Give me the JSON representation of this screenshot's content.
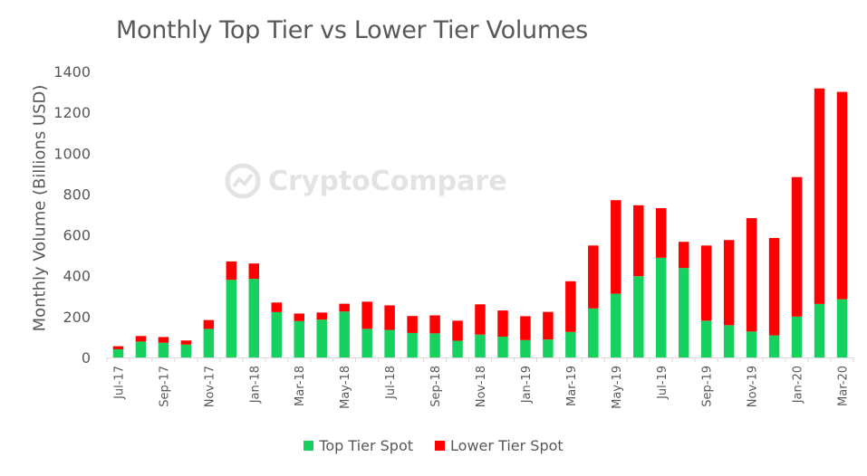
{
  "chart_data": {
    "type": "bar",
    "stacked": true,
    "title": "Monthly Top Tier vs Lower Tier Volumes",
    "ylabel": "Monthly Volume (Billions USD)",
    "xlabel": "",
    "ylim": [
      0,
      1400
    ],
    "yticks": [
      "0",
      "200",
      "400",
      "600",
      "800",
      "1000",
      "1200",
      "1400"
    ],
    "grid": false,
    "legend_position": "bottom",
    "categories": [
      "Jul-17",
      "Aug-17",
      "Sep-17",
      "Oct-17",
      "Nov-17",
      "Dec-17",
      "Jan-18",
      "Feb-18",
      "Mar-18",
      "Apr-18",
      "May-18",
      "Jun-18",
      "Jul-18",
      "Aug-18",
      "Sep-18",
      "Oct-18",
      "Nov-18",
      "Dec-18",
      "Jan-19",
      "Feb-19",
      "Mar-19",
      "Apr-19",
      "May-19",
      "Jun-19",
      "Jul-19",
      "Aug-19",
      "Sep-19",
      "Oct-19",
      "Nov-19",
      "Dec-19",
      "Jan-20",
      "Feb-20",
      "Mar-20"
    ],
    "tick_labels": [
      "Jul-17",
      "",
      "Sep-17",
      "",
      "Nov-17",
      "",
      "Jan-18",
      "",
      "Mar-18",
      "",
      "May-18",
      "",
      "Jul-18",
      "",
      "Sep-18",
      "",
      "Nov-18",
      "",
      "Jan-19",
      "",
      "Mar-19",
      "",
      "May-19",
      "",
      "Jul-19",
      "",
      "Sep-19",
      "",
      "Nov-19",
      "",
      "Jan-20",
      "",
      "Mar-20"
    ],
    "series": [
      {
        "name": "Top Tier Spot",
        "color": "#16d15f",
        "values": [
          40,
          78,
          72,
          63,
          140,
          380,
          385,
          222,
          178,
          185,
          225,
          140,
          135,
          120,
          118,
          82,
          112,
          102,
          85,
          88,
          125,
          240,
          312,
          398,
          488,
          438,
          180,
          158,
          127,
          108,
          200,
          262,
          285
        ]
      },
      {
        "name": "Lower Tier Spot",
        "color": "#ff0000",
        "values": [
          15,
          27,
          28,
          20,
          43,
          90,
          75,
          47,
          37,
          35,
          38,
          133,
          120,
          83,
          88,
          98,
          148,
          128,
          117,
          135,
          248,
          308,
          458,
          347,
          243,
          128,
          368,
          417,
          555,
          477,
          683,
          1055,
          1015
        ]
      }
    ]
  },
  "watermark": {
    "text": "CryptoCompare",
    "icon": "cryptocompare-logo-icon"
  }
}
